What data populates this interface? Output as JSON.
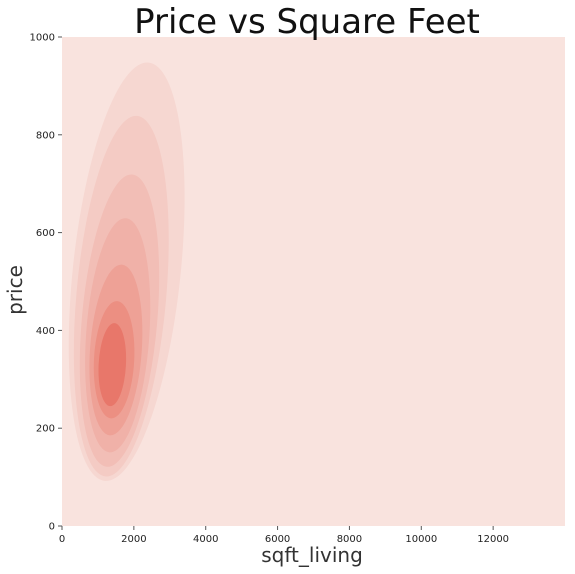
{
  "chart_data": {
    "type": "kde",
    "title": "Price vs Square Feet",
    "xlabel": "sqft_living",
    "ylabel": "price",
    "xlim": [
      0,
      14000
    ],
    "ylim": [
      0,
      1000
    ],
    "xticks": [
      0,
      2000,
      4000,
      6000,
      8000,
      10000,
      12000
    ],
    "yticks": [
      0,
      200,
      400,
      600,
      800,
      1000
    ],
    "grid": false,
    "background_color": "#f9e3de",
    "density_color": "#e8776a",
    "contours": [
      {
        "level": 1,
        "cx": 1800,
        "cy": 520,
        "sx": 1500,
        "sy": 430,
        "rot": 6,
        "color": "#f6d7d1"
      },
      {
        "level": 2,
        "cx": 1650,
        "cy": 470,
        "sx": 1250,
        "sy": 370,
        "rot": 5,
        "color": "#f4cbc4"
      },
      {
        "level": 3,
        "cx": 1600,
        "cy": 420,
        "sx": 1050,
        "sy": 300,
        "rot": 5,
        "color": "#f2beb6"
      },
      {
        "level": 4,
        "cx": 1550,
        "cy": 390,
        "sx": 880,
        "sy": 240,
        "rot": 4,
        "color": "#f0b1a8"
      },
      {
        "level": 5,
        "cx": 1500,
        "cy": 360,
        "sx": 720,
        "sy": 175,
        "rot": 4,
        "color": "#eea196"
      },
      {
        "level": 6,
        "cx": 1450,
        "cy": 340,
        "sx": 560,
        "sy": 120,
        "rot": 3,
        "color": "#ec8f82"
      },
      {
        "level": 7,
        "cx": 1400,
        "cy": 330,
        "sx": 380,
        "sy": 85,
        "rot": 3,
        "color": "#e8776a"
      }
    ]
  }
}
